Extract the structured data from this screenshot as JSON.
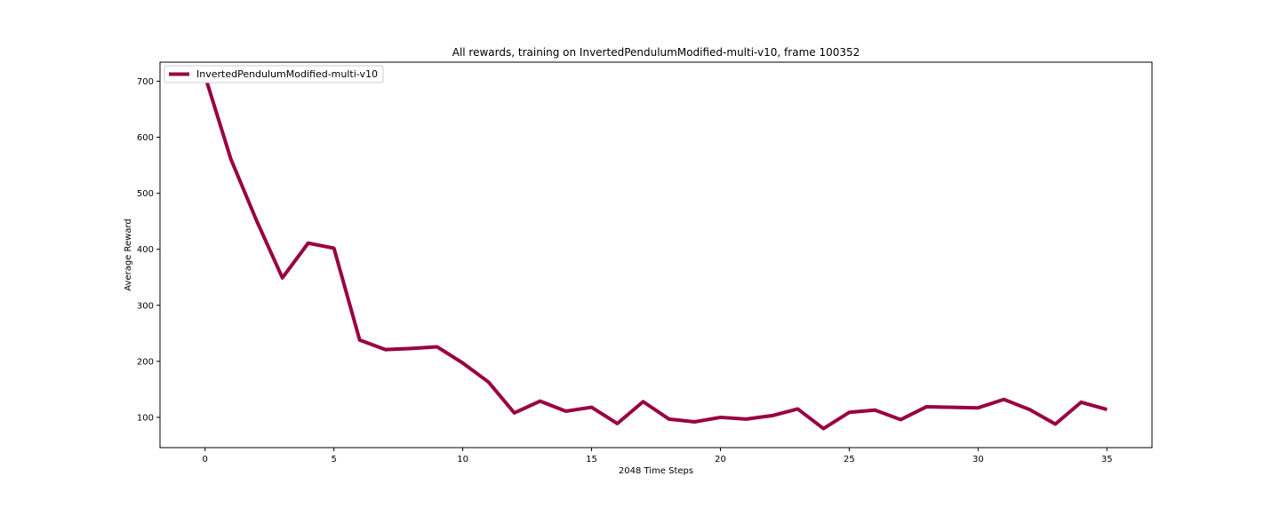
{
  "chart_data": {
    "type": "line",
    "title": "All rewards, training on InvertedPendulumModified-multi-v10, frame 100352",
    "xlabel": "2048 Time Steps",
    "ylabel": "Average Reward",
    "xlim": [
      -1.75,
      36.75
    ],
    "ylim": [
      46,
      734
    ],
    "xticks": [
      0,
      5,
      10,
      15,
      20,
      25,
      30,
      35
    ],
    "yticks": [
      100,
      200,
      300,
      400,
      500,
      600,
      700
    ],
    "x_tick_labels": [
      "0",
      "5",
      "10",
      "15",
      "20",
      "25",
      "30",
      "35"
    ],
    "y_tick_labels": [
      "100",
      "200",
      "300",
      "400",
      "500",
      "600",
      "700"
    ],
    "grid": false,
    "legend_position": "upper-left",
    "series": [
      {
        "name": "InvertedPendulumModified-multi-v10",
        "color": "#990042",
        "x": [
          0,
          1,
          2,
          3,
          4,
          5,
          6,
          7,
          8,
          9,
          10,
          11,
          12,
          13,
          14,
          15,
          16,
          17,
          18,
          19,
          20,
          21,
          22,
          23,
          24,
          25,
          26,
          27,
          28,
          29,
          30,
          31,
          32,
          33,
          34,
          35
        ],
        "y": [
          709,
          561,
          451,
          349,
          411,
          402,
          238,
          221,
          223,
          226,
          197,
          163,
          108,
          129,
          111,
          118,
          89,
          128,
          97,
          92,
          100,
          97,
          103,
          115,
          80,
          109,
          113,
          96,
          119,
          118,
          117,
          132,
          114,
          88,
          127,
          114
        ]
      }
    ]
  }
}
